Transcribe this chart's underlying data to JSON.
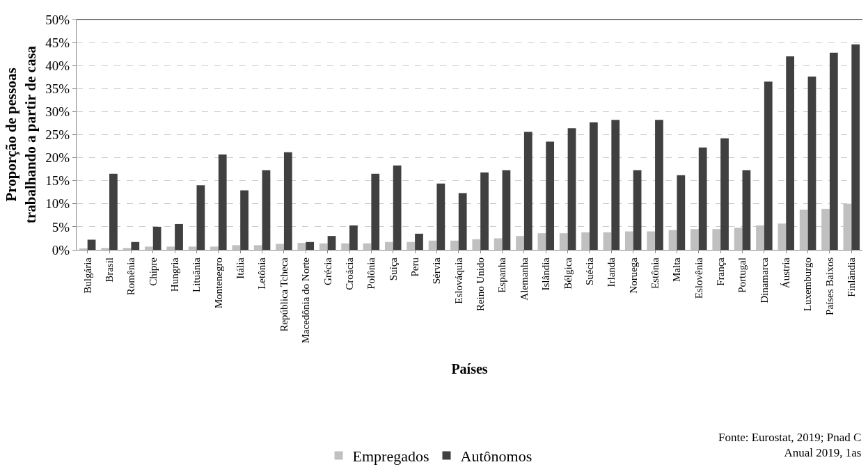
{
  "chart_data": {
    "type": "bar",
    "xlabel": "Países",
    "ylabel": "Proporção de pessoas\ntrabalhando a partir de casa",
    "categories": [
      "Bulgária",
      "Brasil",
      "Romênia",
      "Chipre",
      "Hungria",
      "Lituânia",
      "Montenegro",
      "Itália",
      "Letônia",
      "República Tcheca",
      "Macedônia do Norte",
      "Grécia",
      "Croácia",
      "Polônia",
      "Suíça",
      "Peru",
      "Sérvia",
      "Eslováquia",
      "Reino Unido",
      "Espanha",
      "Alemanha",
      "Islândia",
      "Bélgica",
      "Suécia",
      "Irlanda",
      "Noruega",
      "Estônia",
      "Malta",
      "Eslovênia",
      "França",
      "Portugal",
      "Dinamarca",
      "Áustria",
      "Luxemburgo",
      "Países Baixos",
      "Finlândia"
    ],
    "series": [
      {
        "name": "Empregados",
        "color": "#c0c0c0",
        "values": [
          0.3,
          0.4,
          0.4,
          0.7,
          0.7,
          0.7,
          0.7,
          1.0,
          1.0,
          1.3,
          1.5,
          1.4,
          1.4,
          1.4,
          1.7,
          1.7,
          2.0,
          2.0,
          2.3,
          2.5,
          3.0,
          3.6,
          3.6,
          3.8,
          3.8,
          4.0,
          4.0,
          4.3,
          4.5,
          4.5,
          4.8,
          5.3,
          5.7,
          8.7,
          8.9,
          10.0
        ]
      },
      {
        "name": "Autônomos",
        "color": "#404040",
        "values": [
          2.2,
          16.5,
          1.7,
          5.0,
          5.6,
          14.0,
          20.7,
          12.9,
          17.3,
          21.2,
          1.7,
          3.0,
          5.3,
          16.5,
          18.3,
          3.5,
          14.4,
          12.3,
          16.8,
          17.3,
          25.6,
          23.5,
          26.4,
          27.7,
          28.2,
          17.3,
          28.2,
          16.2,
          22.2,
          24.2,
          17.3,
          36.5,
          42.0,
          37.6,
          42.8,
          44.6
        ]
      }
    ],
    "ylim": [
      0,
      50
    ],
    "yticks": [
      {
        "value": 0,
        "label": "0%"
      },
      {
        "value": 5,
        "label": "5%"
      },
      {
        "value": 10,
        "label": "10%"
      },
      {
        "value": 15,
        "label": "15%"
      },
      {
        "value": 20,
        "label": "20%"
      },
      {
        "value": 25,
        "label": "25%"
      },
      {
        "value": 30,
        "label": "30%"
      },
      {
        "value": 35,
        "label": "35%"
      },
      {
        "value": 40,
        "label": "40%"
      },
      {
        "value": 45,
        "label": "45%"
      },
      {
        "value": 50,
        "label": "50%"
      }
    ],
    "grid": "y",
    "legend": "bottom",
    "annotations": [
      "Fonte: Eurostat, 2019; Pnad C\nAnual 2019, 1as"
    ]
  }
}
